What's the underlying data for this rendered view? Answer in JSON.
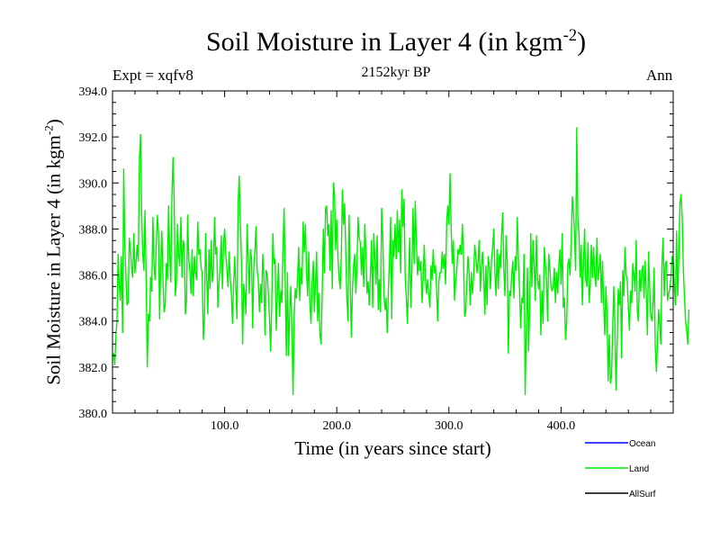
{
  "chart_data": {
    "type": "line",
    "title_main": "Soil Moisture in Layer 4 (in kgm",
    "title_sup": "-2",
    "title_close": ")",
    "subtitle": "2152kyr BP",
    "expt_label": "Expt = xqfv8",
    "season_label": "Ann",
    "xlabel": "Time (in years since start)",
    "ylabel_main": "Soil Moisture in Layer 4 (in kgm",
    "ylabel_sup": "-2",
    "ylabel_close": ")",
    "xlim": [
      0,
      500
    ],
    "ylim": [
      380.0,
      394.0
    ],
    "x_ticks": [
      100,
      200,
      300,
      400
    ],
    "x_tick_labels": [
      "100.0",
      "200.0",
      "300.0",
      "400.0"
    ],
    "y_ticks": [
      380,
      382,
      384,
      386,
      388,
      390,
      392,
      394
    ],
    "y_tick_labels": [
      "380.0",
      "382.0",
      "384.0",
      "386.0",
      "388.0",
      "390.0",
      "392.0",
      "394.0"
    ],
    "legend": [
      {
        "name": "Ocean",
        "color": "#0000ff"
      },
      {
        "name": "Land",
        "color": "#00ee00"
      },
      {
        "name": "AllSurf",
        "color": "#000000"
      }
    ],
    "series": [
      {
        "name": "Land",
        "color": "#00ee00",
        "x_start": 1,
        "x_step": 1,
        "values": [
          382.6,
          382.1,
          383.3,
          384.0,
          386.9,
          385.6,
          384.9,
          386.8,
          383.5,
          390.6,
          387.2,
          385.9,
          384.7,
          384.8,
          387.6,
          387.1,
          386.3,
          385.9,
          387.8,
          386.1,
          386.6,
          387.3,
          386.6,
          391.0,
          392.1,
          388.6,
          386.9,
          386.2,
          388.8,
          385.9,
          382.0,
          384.3,
          384.0,
          385.9,
          385.3,
          388.5,
          386.4,
          385.8,
          387.3,
          388.6,
          387.8,
          384.1,
          386.4,
          387.9,
          385.8,
          384.4,
          384.7,
          386.5,
          385.8,
          389.0,
          386.9,
          385.7,
          389.4,
          391.1,
          389.2,
          385.1,
          385.7,
          388.2,
          386.9,
          386.4,
          388.5,
          385.9,
          387.5,
          387.3,
          384.3,
          384.9,
          388.6,
          386.7,
          386.2,
          385.2,
          387.1,
          385.1,
          386.8,
          386.1,
          385.8,
          388.3,
          386.9,
          387.1,
          386.3,
          386.1,
          383.2,
          384.1,
          387.8,
          386.0,
          384.3,
          387.1,
          385.4,
          387.5,
          385.7,
          386.3,
          388.5,
          386.9,
          387.2,
          384.6,
          385.7,
          386.4,
          387.7,
          385.4,
          387.3,
          388.0,
          386.9,
          386.3,
          385.5,
          387.0,
          385.8,
          385.2,
          383.9,
          385.6,
          386.8,
          385.4,
          384.1,
          389.1,
          390.3,
          388.2,
          386.7,
          383.0,
          385.6,
          385.2,
          384.3,
          388.2,
          386.8,
          385.2,
          387.1,
          386.7,
          383.7,
          386.4,
          387.0,
          388.1,
          386.2,
          385.8,
          384.4,
          385.6,
          384.8,
          386.9,
          385.9,
          383.4,
          386.2,
          386.0,
          385.2,
          384.1,
          382.7,
          384.7,
          387.8,
          386.5,
          386.7,
          383.6,
          385.0,
          386.5,
          384.2,
          385.3,
          384.8,
          387.1,
          388.9,
          385.9,
          382.5,
          386.1,
          382.5,
          384.4,
          385.5,
          383.5,
          380.8,
          384.2,
          385.4,
          385.0,
          385.8,
          387.2,
          384.9,
          386.3,
          385.6,
          388.3,
          387.0,
          388.2,
          386.2,
          385.1,
          387.0,
          384.8,
          383.9,
          385.6,
          386.6,
          384.4,
          385.6,
          387.0,
          384.0,
          385.2,
          383.4,
          383.0,
          385.2,
          388.0,
          386.1,
          388.9,
          389.0,
          387.7,
          388.2,
          386.2,
          388.8,
          385.4,
          390.0,
          389.5,
          387.1,
          388.4,
          386.8,
          385.9,
          385.4,
          386.7,
          389.7,
          388.2,
          389.1,
          387.0,
          385.0,
          384.0,
          388.6,
          385.7,
          383.3,
          385.4,
          386.4,
          386.9,
          385.2,
          386.4,
          388.5,
          387.6,
          387.4,
          386.0,
          387.2,
          385.5,
          388.2,
          387.0,
          385.2,
          385.7,
          384.7,
          386.0,
          387.5,
          384.6,
          387.8,
          386.7,
          385.6,
          387.7,
          384.5,
          385.8,
          384.4,
          388.9,
          387.7,
          385.2,
          384.5,
          385.0,
          383.5,
          385.3,
          386.6,
          388.5,
          384.1,
          387.5,
          386.8,
          388.2,
          386.7,
          388.8,
          387.0,
          388.4,
          386.1,
          389.7,
          388.1,
          389.3,
          386.0,
          385.0,
          383.9,
          385.7,
          387.6,
          384.6,
          386.3,
          388.9,
          386.5,
          389.2,
          387.4,
          386.0,
          386.8,
          386.2,
          386.6,
          384.8,
          385.8,
          387.3,
          385.9,
          385.2,
          385.8,
          385.2,
          384.6,
          386.4,
          385.8,
          387.1,
          386.1,
          386.4,
          385.4,
          384.0,
          385.7,
          386.1,
          386.1,
          387.0,
          386.3,
          386.9,
          385.6,
          388.3,
          389.0,
          388.2,
          390.4,
          388.0,
          386.5,
          387.5,
          384.9,
          385.7,
          386.2,
          387.1,
          386.9,
          387.3,
          386.9,
          388.2,
          386.8,
          384.2,
          384.4,
          385.7,
          386.8,
          386.1,
          384.7,
          386.1,
          385.2,
          385.9,
          387.3,
          386.8,
          386.1,
          386.6,
          387.5,
          385.3,
          386.4,
          387.0,
          386.0,
          384.3,
          386.4,
          384.7,
          386.8,
          386.4,
          385.4,
          386.7,
          387.2,
          388.0,
          386.1,
          385.1,
          387.1,
          385.4,
          386.9,
          386.3,
          387.8,
          388.7,
          386.2,
          385.1,
          387.7,
          386.6,
          382.6,
          385.3,
          385.1,
          386.0,
          386.6,
          385.0,
          386.8,
          386.2,
          388.5,
          386.5,
          385.3,
          383.7,
          385.0,
          384.8,
          386.9,
          380.8,
          383.6,
          386.3,
          382.7,
          384.5,
          387.8,
          385.5,
          387.5,
          386.4,
          384.9,
          387.7,
          385.8,
          385.4,
          386.0,
          383.4,
          385.3,
          383.9,
          387.2,
          386.5,
          385.8,
          384.0,
          386.9,
          386.3,
          385.5,
          385.3,
          385.5,
          386.3,
          384.8,
          386.1,
          385.2,
          386.4,
          387.1,
          385.6,
          387.8,
          384.6,
          385.0,
          383.2,
          383.9,
          386.4,
          386.7,
          386.0,
          387.3,
          389.4,
          388.8,
          387.8,
          386.2,
          392.4,
          388.4,
          387.8,
          385.9,
          387.3,
          384.7,
          386.4,
          388.0,
          385.8,
          385.5,
          387.4,
          384.8,
          385.5,
          387.3,
          385.9,
          387.2,
          386.0,
          385.5,
          387.6,
          385.8,
          386.3,
          386.9,
          384.8,
          386.6,
          384.8,
          383.4,
          385.5,
          384.3,
          381.4,
          383.4,
          381.3,
          381.6,
          383.6,
          385.5,
          383.8,
          381.0,
          382.9,
          385.4,
          384.7,
          385.7,
          382.4,
          386.2,
          385.1,
          387.2,
          386.0,
          385.8,
          384.6,
          383.6,
          385.3,
          384.8,
          386.5,
          386.0,
          385.3,
          387.5,
          384.4,
          384.0,
          386.2,
          385.3,
          386.2,
          386.4,
          385.0,
          386.6,
          385.2,
          383.4,
          387.0,
          385.5,
          384.2,
          384.0,
          384.7,
          386.3,
          382.9,
          381.8,
          383.1,
          384.5,
          383.8,
          383.0,
          386.5,
          387.6,
          385.1,
          386.5,
          386.6,
          384.9,
          385.2,
          385.4,
          385.9,
          386.8,
          386.6,
          385.6,
          384.7,
          387.9,
          385.1,
          386.7,
          389.1,
          389.5,
          388.5,
          386.3,
          385.1,
          384.0,
          383.6,
          383.0,
          384.5
        ]
      }
    ]
  }
}
